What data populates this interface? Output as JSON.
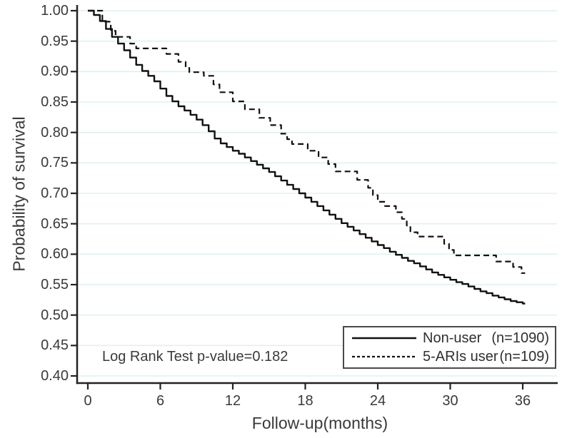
{
  "chart_data": {
    "type": "line",
    "subtype": "kaplan-meier-step-survival",
    "title": "",
    "xlabel": "Follow-up(months)",
    "ylabel": "Probability of survival",
    "xlim": [
      0,
      36
    ],
    "ylim": [
      0.4,
      1.0
    ],
    "x_ticks": [
      0,
      6,
      12,
      18,
      24,
      30,
      36
    ],
    "y_ticks": [
      {
        "value": 1.0,
        "label": "1.00"
      },
      {
        "value": 0.95,
        "label": "0.95"
      },
      {
        "value": 0.9,
        "label": "0.90"
      },
      {
        "value": 0.85,
        "label": "0.85"
      },
      {
        "value": 0.8,
        "label": "0.80"
      },
      {
        "value": 0.75,
        "label": "0.75"
      },
      {
        "value": 0.7,
        "label": "0.70"
      },
      {
        "value": 0.65,
        "label": "0.65"
      },
      {
        "value": 0.6,
        "label": "0.60"
      },
      {
        "value": 0.55,
        "label": "0.55"
      },
      {
        "value": 0.5,
        "label": "0.50"
      },
      {
        "value": 0.45,
        "label": "0.45"
      },
      {
        "value": 0.4,
        "label": "0.40"
      }
    ],
    "grid": "horizontal-only",
    "legend_position": "inside-bottom-right",
    "annotation": "Log Rank Test p-value=0.182",
    "series": [
      {
        "name": "Non-user",
        "n_label": "(n=1090)",
        "line": "solid",
        "points": [
          [
            0,
            1.0
          ],
          [
            0.5,
            0.993
          ],
          [
            1,
            0.983
          ],
          [
            1.5,
            0.97
          ],
          [
            2,
            0.957
          ],
          [
            2.5,
            0.946
          ],
          [
            3,
            0.935
          ],
          [
            3.5,
            0.923
          ],
          [
            4,
            0.911
          ],
          [
            4.5,
            0.901
          ],
          [
            5,
            0.893
          ],
          [
            5.5,
            0.884
          ],
          [
            6,
            0.872
          ],
          [
            6.5,
            0.86
          ],
          [
            7,
            0.851
          ],
          [
            7.5,
            0.843
          ],
          [
            8,
            0.836
          ],
          [
            8.5,
            0.829
          ],
          [
            9,
            0.821
          ],
          [
            9.5,
            0.812
          ],
          [
            10,
            0.802
          ],
          [
            10.5,
            0.79
          ],
          [
            11,
            0.782
          ],
          [
            11.5,
            0.776
          ],
          [
            12,
            0.77
          ],
          [
            12.5,
            0.765
          ],
          [
            13,
            0.759
          ],
          [
            13.5,
            0.753
          ],
          [
            14,
            0.747
          ],
          [
            14.5,
            0.741
          ],
          [
            15,
            0.735
          ],
          [
            15.5,
            0.728
          ],
          [
            16,
            0.721
          ],
          [
            16.5,
            0.714
          ],
          [
            17,
            0.707
          ],
          [
            17.5,
            0.7
          ],
          [
            18,
            0.693
          ],
          [
            18.5,
            0.686
          ],
          [
            19,
            0.679
          ],
          [
            19.5,
            0.672
          ],
          [
            20,
            0.665
          ],
          [
            20.5,
            0.658
          ],
          [
            21,
            0.651
          ],
          [
            21.5,
            0.645
          ],
          [
            22,
            0.639
          ],
          [
            22.5,
            0.633
          ],
          [
            23,
            0.627
          ],
          [
            23.5,
            0.621
          ],
          [
            24,
            0.615
          ],
          [
            24.5,
            0.61
          ],
          [
            25,
            0.604
          ],
          [
            25.5,
            0.599
          ],
          [
            26,
            0.594
          ],
          [
            26.5,
            0.589
          ],
          [
            27,
            0.585
          ],
          [
            27.5,
            0.58
          ],
          [
            28,
            0.575
          ],
          [
            28.5,
            0.57
          ],
          [
            29,
            0.566
          ],
          [
            29.5,
            0.562
          ],
          [
            30,
            0.558
          ],
          [
            30.5,
            0.554
          ],
          [
            31,
            0.551
          ],
          [
            31.5,
            0.547
          ],
          [
            32,
            0.543
          ],
          [
            32.5,
            0.539
          ],
          [
            33,
            0.536
          ],
          [
            33.5,
            0.532
          ],
          [
            34,
            0.529
          ],
          [
            34.5,
            0.526
          ],
          [
            35,
            0.523
          ],
          [
            35.5,
            0.521
          ],
          [
            36,
            0.519
          ],
          [
            36.2,
            0.519
          ]
        ]
      },
      {
        "name": "5-ARIs user",
        "n_label": "(n=109)",
        "line": "dashed",
        "points": [
          [
            0,
            1.0
          ],
          [
            1.2,
            0.982
          ],
          [
            1.9,
            0.967
          ],
          [
            2.3,
            0.957
          ],
          [
            3.5,
            0.946
          ],
          [
            4.0,
            0.938
          ],
          [
            6.5,
            0.929
          ],
          [
            7.5,
            0.916
          ],
          [
            8.1,
            0.906
          ],
          [
            8.4,
            0.899
          ],
          [
            9.6,
            0.893
          ],
          [
            10.4,
            0.879
          ],
          [
            10.9,
            0.866
          ],
          [
            12.0,
            0.851
          ],
          [
            13.0,
            0.838
          ],
          [
            14.2,
            0.824
          ],
          [
            15.1,
            0.812
          ],
          [
            16.0,
            0.798
          ],
          [
            16.5,
            0.789
          ],
          [
            16.9,
            0.781
          ],
          [
            18.2,
            0.77
          ],
          [
            19.1,
            0.759
          ],
          [
            19.9,
            0.748
          ],
          [
            20.5,
            0.736
          ],
          [
            22.3,
            0.722
          ],
          [
            23.2,
            0.709
          ],
          [
            23.6,
            0.697
          ],
          [
            24.0,
            0.686
          ],
          [
            24.6,
            0.679
          ],
          [
            25.5,
            0.669
          ],
          [
            26.0,
            0.658
          ],
          [
            26.4,
            0.647
          ],
          [
            26.7,
            0.636
          ],
          [
            27.3,
            0.629
          ],
          [
            29.5,
            0.617
          ],
          [
            29.9,
            0.607
          ],
          [
            30.3,
            0.598
          ],
          [
            33.8,
            0.588
          ],
          [
            35.2,
            0.579
          ],
          [
            35.9,
            0.569
          ],
          [
            36.2,
            0.569
          ]
        ]
      }
    ]
  },
  "legend": {
    "items": [
      {
        "label": "Non-user",
        "count": "(n=1090)"
      },
      {
        "label": "5-ARIs user",
        "count": "(n=109)"
      }
    ]
  },
  "colors": {
    "curve": "#111111",
    "axis": "#222222",
    "grid": "#e0f0f1",
    "text": "#3a3a3a"
  }
}
